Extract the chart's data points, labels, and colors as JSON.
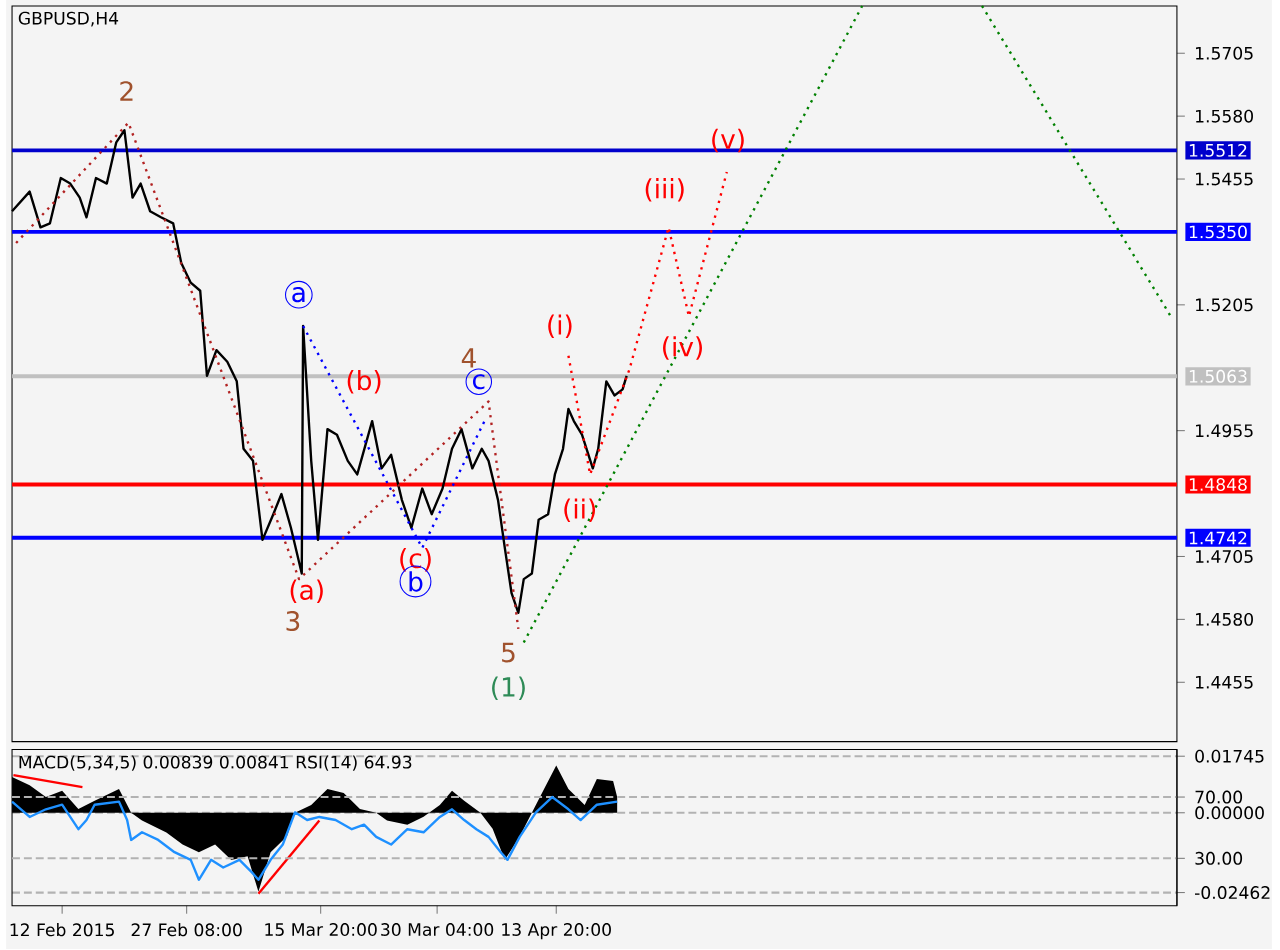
{
  "chart_data": [
    {
      "type": "line",
      "title": "GBPUSD,H4",
      "xlim": [
        "2015-02-05T20:00",
        "2015-06-29T06:00"
      ],
      "ylim": [
        1.4337,
        1.5799
      ],
      "tick_labels": "y",
      "yticks": [
        {
          "value": 1.5705,
          "label": "1.5705"
        },
        {
          "value": 1.558,
          "label": "1.5580"
        },
        {
          "value": 1.5455,
          "label": "1.5455"
        },
        {
          "value": 1.5205,
          "label": "1.5205"
        },
        {
          "value": 1.4955,
          "label": "1.4955"
        },
        {
          "value": 1.4705,
          "label": "1.4705"
        },
        {
          "value": 1.458,
          "label": "1.4580"
        },
        {
          "value": 1.4455,
          "label": "1.4455"
        }
      ],
      "series": [
        {
          "color": "#000000",
          "x": [
            "2015-02-05T20:00",
            "2015-02-08T00:00",
            "2015-02-09T08:00",
            "2015-02-10T12:00",
            "2015-02-11T20:00",
            "2015-02-13T00:00",
            "2015-02-14T04:00",
            "2015-02-15T00:00",
            "2015-02-16T04:00",
            "2015-02-17T12:00",
            "2015-02-18T16:00",
            "2015-02-19T16:00",
            "2015-02-20T16:00",
            "2015-02-21T16:00",
            "2015-02-22T20:00",
            "2015-02-24T04:00",
            "2015-02-25T16:00",
            "2015-02-26T16:00",
            "2015-02-27T20:00",
            "2015-03-01T00:00",
            "2015-03-01T20:00",
            "2015-03-03T00:00",
            "2015-03-04T08:00",
            "2015-03-05T12:00",
            "2015-03-06T08:00",
            "2015-03-07T12:00",
            "2015-03-08T16:00",
            "2015-03-10T00:00",
            "2015-03-11T00:00",
            "2015-03-12T04:00",
            "2015-03-13T12:00",
            "2015-03-13T16:00",
            "2015-03-14T16:00",
            "2015-03-15T12:00",
            "2015-03-16T16:00",
            "2015-03-17T20:00",
            "2015-03-19T04:00",
            "2015-03-20T08:00",
            "2015-03-22T04:00",
            "2015-03-23T08:00",
            "2015-03-24T12:00",
            "2015-03-25T20:00",
            "2015-03-27T00:00",
            "2015-03-28T08:00",
            "2015-03-29T12:00",
            "2015-03-30T20:00",
            "2015-04-01T00:00",
            "2015-04-02T04:00",
            "2015-04-03T12:00",
            "2015-04-04T16:00",
            "2015-04-05T12:00",
            "2015-04-06T16:00",
            "2015-04-07T12:00",
            "2015-04-08T08:00",
            "2015-04-09T04:00",
            "2015-04-09T20:00",
            "2015-04-10T20:00",
            "2015-04-11T16:00",
            "2015-04-12T20:00",
            "2015-04-13T16:00",
            "2015-04-14T16:00",
            "2015-04-15T08:00",
            "2015-04-16T00:00",
            "2015-04-17T00:00",
            "2015-04-18T08:00",
            "2015-04-19T00:00",
            "2015-04-20T00:00",
            "2015-04-21T00:00",
            "2015-04-22T00:00",
            "2015-04-22T12:00"
          ],
          "values": [
            1.5391,
            1.543,
            1.5359,
            1.5367,
            1.5457,
            1.5446,
            1.5418,
            1.5379,
            1.5457,
            1.5446,
            1.5528,
            1.5552,
            1.5418,
            1.5446,
            1.5391,
            1.5379,
            1.5367,
            1.5288,
            1.5249,
            1.5233,
            1.5064,
            1.5115,
            1.5092,
            1.5053,
            1.4919,
            1.4895,
            1.4738,
            1.4789,
            1.4829,
            1.4762,
            1.4671,
            1.5163,
            1.4895,
            1.4738,
            1.4958,
            1.4947,
            1.4895,
            1.4868,
            1.4974,
            1.488,
            1.4907,
            1.4817,
            1.4762,
            1.484,
            1.4789,
            1.484,
            1.4919,
            1.4958,
            1.488,
            1.4919,
            1.4895,
            1.4817,
            1.4722,
            1.4632,
            1.4593,
            1.466,
            1.4671,
            1.4778,
            1.4789,
            1.4868,
            1.4919,
            1.4998,
            1.4974,
            1.4947,
            1.488,
            1.4919,
            1.5053,
            1.5025,
            1.5037,
            1.5064
          ]
        },
        {
          "color": "#b22222",
          "line_style": "dotted",
          "x": [
            "2015-02-06T08:00",
            "2015-02-20T04:00",
            "2015-03-13T04:00",
            "2015-04-05T12:00",
            "2015-04-09T04:00"
          ],
          "values": [
            1.5328,
            1.5567,
            1.466,
            1.5013,
            1.4561
          ]
        },
        {
          "color": "#ff0000",
          "line_style": "dotted",
          "x": [
            "2015-04-15T08:00",
            "2015-04-18T00:00",
            "2015-04-22T20:00",
            "2015-04-27T16:00",
            "2015-04-30T04:00",
            "2015-05-04T20:00"
          ],
          "values": [
            1.5104,
            1.4868,
            1.5076,
            1.5359,
            1.5182,
            1.5469
          ]
        },
        {
          "color": "#0000ff",
          "line_style": "dotted",
          "x": [
            "2015-03-13T16:00",
            "2015-03-28T08:00",
            "2015-04-05T00:00"
          ],
          "values": [
            1.5163,
            1.4722,
            1.4974
          ]
        },
        {
          "color": "#008000",
          "line_style": "dotted",
          "x": [
            "2015-04-09T20:00",
            "2015-05-21T12:00"
          ],
          "values": [
            1.4534,
            1.5799
          ]
        },
        {
          "color": "#008000",
          "line_style": "dotted",
          "x": [
            "2015-06-05T06:00",
            "2015-06-28T12:00"
          ],
          "values": [
            1.5799,
            1.5182
          ]
        }
      ],
      "ref_lines": [
        {
          "axis": "y",
          "value": 1.5512,
          "label": "1.5512",
          "color": "#0000cc"
        },
        {
          "axis": "y",
          "value": 1.535,
          "label": "1.5350",
          "color": "#0000ff"
        },
        {
          "axis": "y",
          "value": 1.5063,
          "label": "1.5063",
          "color": "#c0c0c0"
        },
        {
          "axis": "y",
          "value": 1.4848,
          "label": "1.4848",
          "color": "#ff0000"
        },
        {
          "axis": "y",
          "value": 1.4742,
          "label": "1.4742",
          "color": "#0000ff"
        }
      ],
      "annotations": [
        "2",
        "3",
        "(a)",
        "a",
        "(b)",
        "(c)",
        "b",
        "4",
        "c",
        "5",
        "(1)",
        "(i)",
        "(ii)",
        "(iii)",
        "(iv)",
        "(v)"
      ]
    },
    {
      "type": "line",
      "title": "MACD(5,34,5) 0.00839 0.00841 RSI(14) 64.93",
      "xlim": [
        "2015-02-05T20:00",
        "2015-06-29T06:00"
      ],
      "ylim": [
        -0.0287,
        0.0195
      ],
      "y2lim": [
        -1,
        101
      ],
      "xticks": [
        {
          "value": "2015-02-12",
          "label": "12 Feb 2015"
        },
        {
          "value": "2015-02-27T08:00",
          "label": "27 Feb 08:00"
        },
        {
          "value": "2015-03-15T20:00",
          "label": "15 Mar 20:00"
        },
        {
          "value": "2015-03-30T04:00",
          "label": "30 Mar 04:00"
        },
        {
          "value": "2015-04-13T20:00",
          "label": "13 Apr 20:00"
        }
      ],
      "yticks": [
        0.01745,
        {
          "value": 0,
          "label": "0.00000"
        },
        -0.02462
      ],
      "y2ticks": [
        {
          "value": 70,
          "label": "70.00"
        },
        {
          "value": 30,
          "label": "30.00"
        }
      ],
      "series": [
        {
          "type": "area",
          "color": "#000000",
          "x": [
            "2015-02-05T20:00",
            "2015-02-08T00:00",
            "2015-02-10T00:00",
            "2015-02-12T00:00",
            "2015-02-14T00:00",
            "2015-02-16T00:00",
            "2015-02-19T00:00",
            "2015-02-20T12:00",
            "2015-02-21T20:00",
            "2015-02-24T20:00",
            "2015-02-26T20:00",
            "2015-02-28T20:00",
            "2015-03-02T20:00",
            "2015-03-04T20:00",
            "2015-03-06T20:00",
            "2015-03-08T04:00",
            "2015-03-09T16:00",
            "2015-03-11T16:00",
            "2015-03-12T16:00",
            "2015-03-14T16:00",
            "2015-03-16T16:00",
            "2015-03-18T16:00",
            "2015-03-20T16:00",
            "2015-03-22T16:00",
            "2015-03-24T00:00",
            "2015-03-26T12:00",
            "2015-03-28T12:00",
            "2015-03-30T12:00",
            "2015-04-01T00:00",
            "2015-04-02T12:00",
            "2015-04-04T12:00",
            "2015-04-06T00:00",
            "2015-04-07T12:00",
            "2015-04-09T08:00",
            "2015-04-10T20:00",
            "2015-04-12T08:00",
            "2015-04-13T20:00",
            "2015-04-15T08:00",
            "2015-04-17T08:00",
            "2015-04-18T20:00",
            "2015-04-20T20:00",
            "2015-04-21T08:00"
          ],
          "values": [
            0.011,
            0.0085,
            0.0049,
            0.0068,
            0.0012,
            0.0037,
            0.0073,
            0,
            -0.0024,
            -0.0061,
            -0.0098,
            -0.0122,
            -0.0098,
            -0.0146,
            -0.0134,
            -0.0244,
            -0.0122,
            -0.0073,
            0,
            0.0024,
            0.0073,
            0.0061,
            0.0012,
            0,
            -0.0024,
            -0.0037,
            -0.0012,
            0.0024,
            0.0068,
            0.0037,
            0,
            -0.0049,
            -0.0146,
            -0.0073,
            0,
            0.0073,
            0.0146,
            0.0073,
            0.0024,
            0.0104,
            0.0098,
            0.0049
          ]
        },
        {
          "color": "#1e90ff",
          "axis": "y2",
          "x": [
            "2015-02-05T20:00",
            "2015-02-08T00:00",
            "2015-02-10T00:00",
            "2015-02-12T00:00",
            "2015-02-14T00:00",
            "2015-02-15T00:00",
            "2015-02-16T00:00",
            "2015-02-19T00:00",
            "2015-02-20T00:00",
            "2015-02-20T12:00",
            "2015-02-21T20:00",
            "2015-02-23T20:00",
            "2015-02-25T20:00",
            "2015-02-27T20:00",
            "2015-02-28T20:00",
            "2015-03-02T08:00",
            "2015-03-03T20:00",
            "2015-03-05T20:00",
            "2015-03-07T08:00",
            "2015-03-08T04:00",
            "2015-03-09T16:00",
            "2015-03-11T04:00",
            "2015-03-12T16:00",
            "2015-03-14T04:00",
            "2015-03-15T16:00",
            "2015-03-17T16:00",
            "2015-03-19T16:00",
            "2015-03-21T04:00",
            "2015-03-22T16:00",
            "2015-03-24T12:00",
            "2015-03-26T12:00",
            "2015-03-28T12:00",
            "2015-03-30T12:00",
            "2015-04-01T00:00",
            "2015-04-02T12:00",
            "2015-04-04T00:00",
            "2015-04-05T12:00",
            "2015-04-07T00:00",
            "2015-04-07T20:00",
            "2015-04-09T08:00",
            "2015-04-11T08:00",
            "2015-04-13T08:00",
            "2015-04-15T08:00",
            "2015-04-16T20:00",
            "2015-04-18T20:00",
            "2015-04-21T08:00"
          ],
          "values": [
            67,
            57,
            62,
            65,
            49,
            55,
            65,
            67,
            55,
            42,
            47,
            42,
            34,
            29,
            16,
            29,
            24,
            29,
            21,
            16,
            29,
            39,
            60,
            55,
            57,
            55,
            49,
            52,
            44,
            39,
            49,
            47,
            57,
            62,
            55,
            49,
            44,
            34,
            29,
            44,
            60,
            70,
            62,
            55,
            65,
            67
          ]
        },
        {
          "color": "#ff0000",
          "x": [
            "2015-02-06T00:00",
            "2015-02-14T12:00"
          ],
          "values": [
            0.0116,
            0.0079
          ]
        },
        {
          "color": "#ff0000",
          "x": [
            "2015-03-08T04:00",
            "2015-03-15T16:00"
          ],
          "values": [
            -0.025,
            -0.0024
          ]
        }
      ],
      "grid": "y"
    }
  ]
}
